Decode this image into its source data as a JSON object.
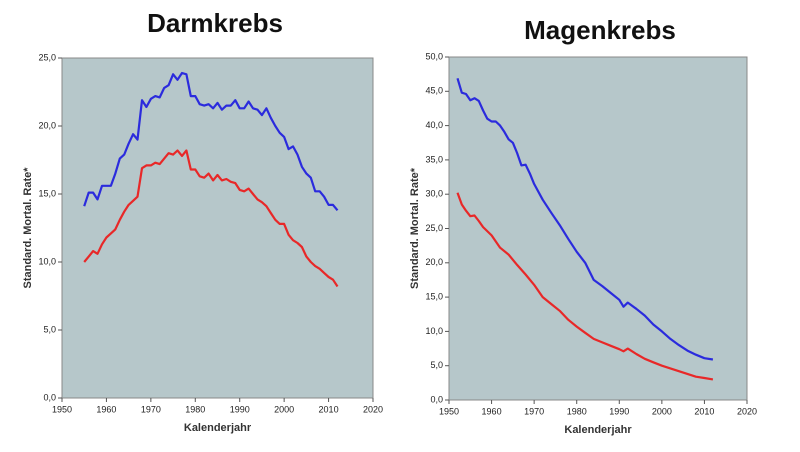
{
  "chart_data": [
    {
      "type": "line",
      "title": "Darmkrebs",
      "xlabel": "Kalenderjahr",
      "ylabel": "Standard. Mortal. Rate*",
      "background": "#b6c7ca",
      "xlim": [
        1950,
        2020
      ],
      "xticks": [
        1950,
        1960,
        1970,
        1980,
        1990,
        2000,
        2010,
        2020
      ],
      "ylim": [
        0,
        25
      ],
      "yticks": [
        {
          "value": 0,
          "label": "0,0"
        },
        {
          "value": 5,
          "label": "5,0"
        },
        {
          "value": 10,
          "label": "10,0"
        },
        {
          "value": 15,
          "label": "15,0"
        },
        {
          "value": 20,
          "label": "20,0"
        },
        {
          "value": 25,
          "label": "25,0"
        }
      ],
      "series": [
        {
          "color": "#2b2bdd",
          "x": [
            1955,
            1956,
            1957,
            1958,
            1959,
            1960,
            1961,
            1962,
            1963,
            1964,
            1965,
            1966,
            1967,
            1968,
            1969,
            1970,
            1971,
            1972,
            1973,
            1974,
            1975,
            1976,
            1977,
            1978,
            1979,
            1980,
            1981,
            1982,
            1983,
            1984,
            1985,
            1986,
            1987,
            1988,
            1989,
            1990,
            1991,
            1992,
            1993,
            1994,
            1995,
            1996,
            1997,
            1998,
            1999,
            2000,
            2001,
            2002,
            2003,
            2004,
            2005,
            2006,
            2007,
            2008,
            2009,
            2010,
            2011,
            2012
          ],
          "values": [
            14.1,
            15.1,
            15.1,
            14.6,
            15.6,
            15.6,
            15.6,
            16.5,
            17.6,
            17.9,
            18.7,
            19.4,
            19.0,
            21.9,
            21.4,
            22.0,
            22.2,
            22.1,
            22.8,
            23.0,
            23.8,
            23.4,
            23.9,
            23.8,
            22.2,
            22.2,
            21.6,
            21.5,
            21.6,
            21.3,
            21.7,
            21.2,
            21.5,
            21.5,
            21.9,
            21.3,
            21.3,
            21.8,
            21.3,
            21.2,
            20.8,
            21.3,
            20.6,
            20.0,
            19.5,
            19.2,
            18.3,
            18.5,
            17.9,
            17.0,
            16.5,
            16.2,
            15.2,
            15.2,
            14.8,
            14.2,
            14.2,
            13.8
          ]
        },
        {
          "color": "#e82828",
          "x": [
            1955,
            1956,
            1957,
            1958,
            1959,
            1960,
            1961,
            1962,
            1963,
            1964,
            1965,
            1966,
            1967,
            1968,
            1969,
            1970,
            1971,
            1972,
            1973,
            1974,
            1975,
            1976,
            1977,
            1978,
            1979,
            1980,
            1981,
            1982,
            1983,
            1984,
            1985,
            1986,
            1987,
            1988,
            1989,
            1990,
            1991,
            1992,
            1993,
            1994,
            1995,
            1996,
            1997,
            1998,
            1999,
            2000,
            2001,
            2002,
            2003,
            2004,
            2005,
            2006,
            2007,
            2008,
            2009,
            2010,
            2011,
            2012
          ],
          "values": [
            10.0,
            10.4,
            10.8,
            10.6,
            11.3,
            11.8,
            12.1,
            12.4,
            13.1,
            13.7,
            14.2,
            14.5,
            14.8,
            16.9,
            17.1,
            17.1,
            17.3,
            17.2,
            17.6,
            18.0,
            17.9,
            18.2,
            17.8,
            18.2,
            16.8,
            16.8,
            16.3,
            16.2,
            16.5,
            16.0,
            16.4,
            16.0,
            16.1,
            15.9,
            15.8,
            15.3,
            15.2,
            15.4,
            15.0,
            14.6,
            14.4,
            14.1,
            13.6,
            13.1,
            12.8,
            12.8,
            12.0,
            11.6,
            11.4,
            11.1,
            10.4,
            10.0,
            9.7,
            9.5,
            9.2,
            8.9,
            8.7,
            8.2
          ]
        }
      ]
    },
    {
      "type": "line",
      "title": "Magenkrebs",
      "xlabel": "Kalenderjahr",
      "ylabel": "Standard. Mortal. Rate*",
      "background": "#b6c7ca",
      "xlim": [
        1950,
        2020
      ],
      "xticks": [
        1950,
        1960,
        1970,
        1980,
        1990,
        2000,
        2010,
        2020
      ],
      "ylim": [
        0,
        50
      ],
      "yticks": [
        {
          "value": 0,
          "label": "0,0"
        },
        {
          "value": 5,
          "label": "5,0"
        },
        {
          "value": 10,
          "label": "10,0"
        },
        {
          "value": 15,
          "label": "15,0"
        },
        {
          "value": 20,
          "label": "20,0"
        },
        {
          "value": 25,
          "label": "25,0"
        },
        {
          "value": 30,
          "label": "30,0"
        },
        {
          "value": 35,
          "label": "35,0"
        },
        {
          "value": 40,
          "label": "40,0"
        },
        {
          "value": 45,
          "label": "45,0"
        },
        {
          "value": 50,
          "label": "50,0"
        }
      ],
      "series": [
        {
          "color": "#2b2bdd",
          "x": [
            1952,
            1953,
            1954,
            1955,
            1956,
            1957,
            1958,
            1959,
            1960,
            1961,
            1962,
            1963,
            1964,
            1965,
            1966,
            1967,
            1968,
            1969,
            1970,
            1972,
            1974,
            1976,
            1978,
            1980,
            1982,
            1984,
            1986,
            1988,
            1990,
            1991,
            1992,
            1994,
            1996,
            1998,
            2000,
            2002,
            2004,
            2006,
            2008,
            2010,
            2012
          ],
          "values": [
            46.9,
            44.8,
            44.6,
            43.7,
            44.0,
            43.6,
            42.2,
            41.0,
            40.6,
            40.6,
            40.0,
            39.1,
            38.0,
            37.5,
            36.0,
            34.2,
            34.3,
            33.0,
            31.5,
            29.2,
            27.3,
            25.5,
            23.5,
            21.6,
            20.0,
            17.5,
            16.6,
            15.6,
            14.6,
            13.6,
            14.2,
            13.3,
            12.3,
            11.0,
            10.0,
            8.9,
            8.0,
            7.2,
            6.6,
            6.1,
            5.9
          ]
        },
        {
          "color": "#e82828",
          "x": [
            1952,
            1953,
            1954,
            1955,
            1956,
            1957,
            1958,
            1960,
            1962,
            1964,
            1966,
            1968,
            1970,
            1972,
            1974,
            1976,
            1978,
            1980,
            1982,
            1984,
            1986,
            1988,
            1990,
            1991,
            1992,
            1994,
            1996,
            1998,
            2000,
            2002,
            2004,
            2006,
            2008,
            2010,
            2012
          ],
          "values": [
            30.2,
            28.5,
            27.6,
            26.8,
            26.9,
            26.1,
            25.2,
            24.0,
            22.2,
            21.2,
            19.7,
            18.3,
            16.8,
            15.0,
            14.0,
            13.0,
            11.7,
            10.7,
            9.8,
            8.9,
            8.4,
            7.9,
            7.4,
            7.1,
            7.5,
            6.7,
            6.0,
            5.5,
            5.0,
            4.6,
            4.2,
            3.8,
            3.4,
            3.2,
            3.0
          ]
        }
      ]
    }
  ]
}
